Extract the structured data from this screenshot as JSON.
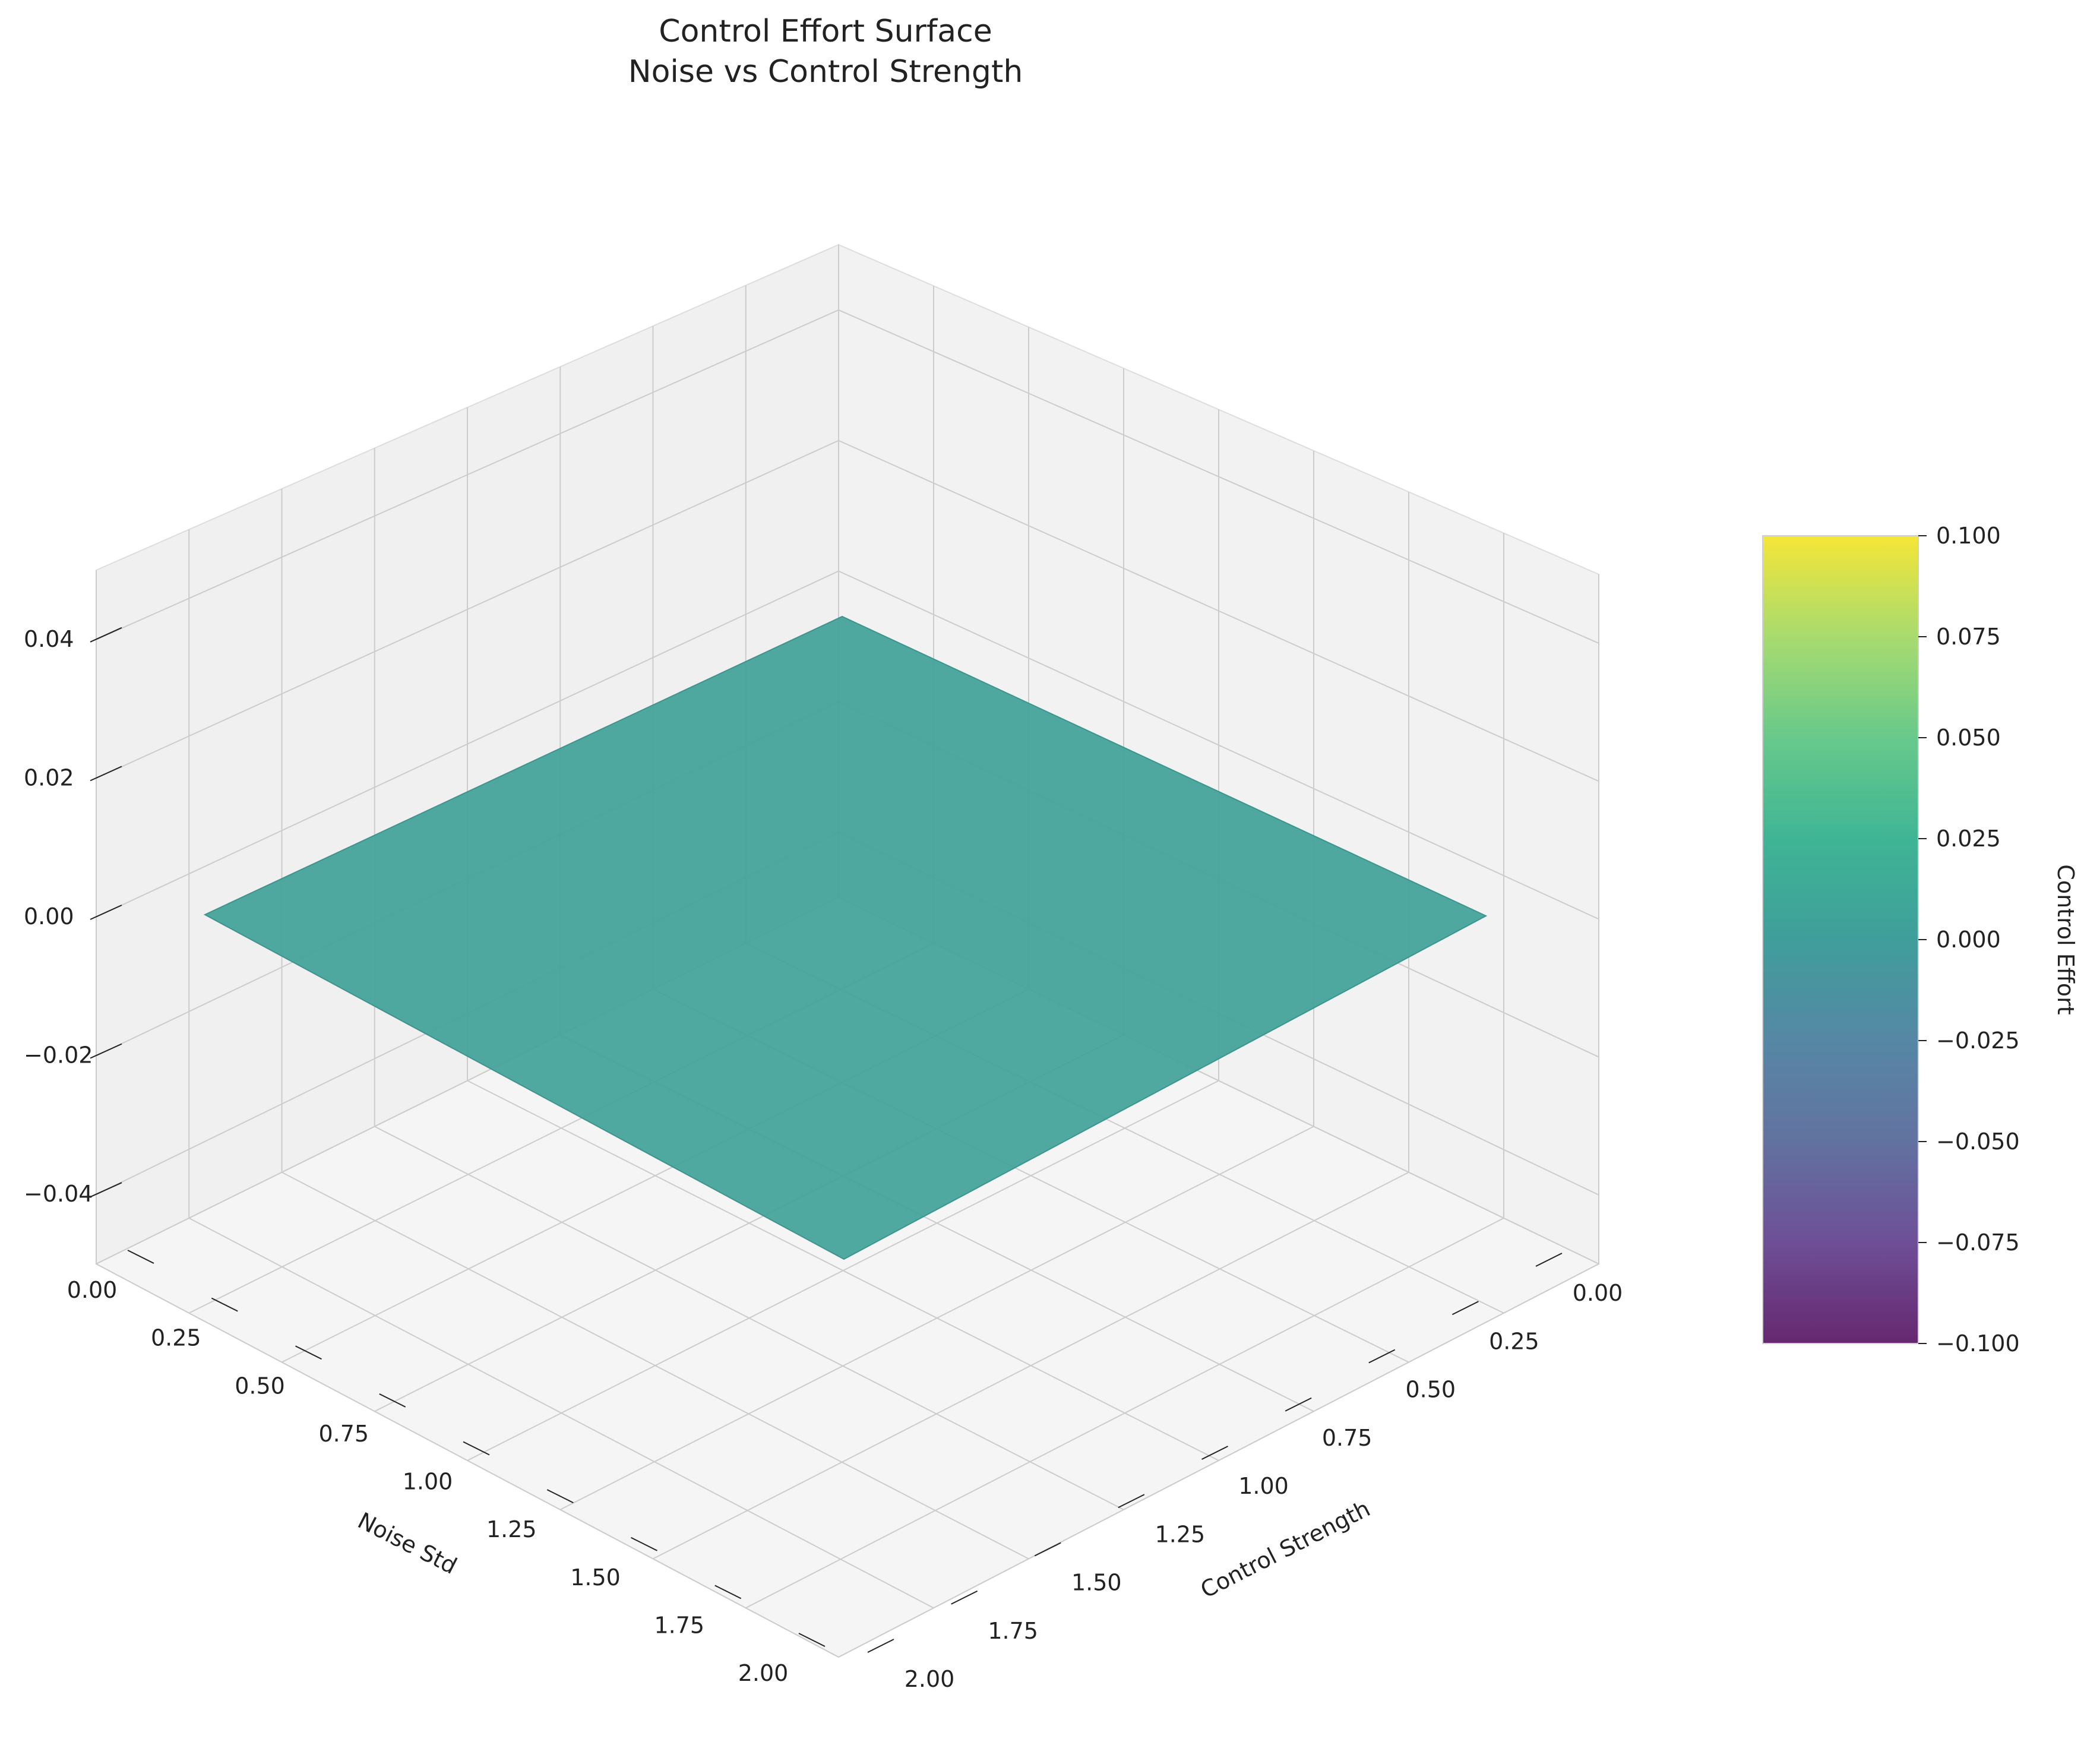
{
  "chart_data": {
    "type": "surface3d",
    "title_lines": [
      "Control Effort Surface",
      "Noise vs Control Strength"
    ],
    "xlabel": "Noise Std",
    "ylabel": "Control Strength",
    "zlabel": "",
    "xlim": [
      0,
      2
    ],
    "ylim": [
      0,
      2
    ],
    "zlim": [
      -0.05,
      0.05
    ],
    "x_ticks": [
      "0.00",
      "0.25",
      "0.50",
      "0.75",
      "1.00",
      "1.25",
      "1.50",
      "1.75",
      "2.00"
    ],
    "y_ticks": [
      "0.00",
      "0.25",
      "0.50",
      "0.75",
      "1.00",
      "1.25",
      "1.50",
      "1.75",
      "2.00"
    ],
    "z_ticks": [
      "−0.04",
      "−0.02",
      "0.00",
      "0.02",
      "0.04"
    ],
    "surface": {
      "x": [
        0,
        2
      ],
      "y": [
        0,
        2
      ],
      "z": [
        [
          0,
          0
        ],
        [
          0,
          0
        ]
      ],
      "color": "#42a29a"
    },
    "colorbar": {
      "label": "Control Effort",
      "colormap": "viridis",
      "range": [
        -0.1,
        0.1
      ],
      "ticks": [
        "0.100",
        "0.075",
        "0.050",
        "0.025",
        "0.000",
        "−0.025",
        "−0.050",
        "−0.075",
        "−0.100"
      ]
    },
    "grid": true
  }
}
